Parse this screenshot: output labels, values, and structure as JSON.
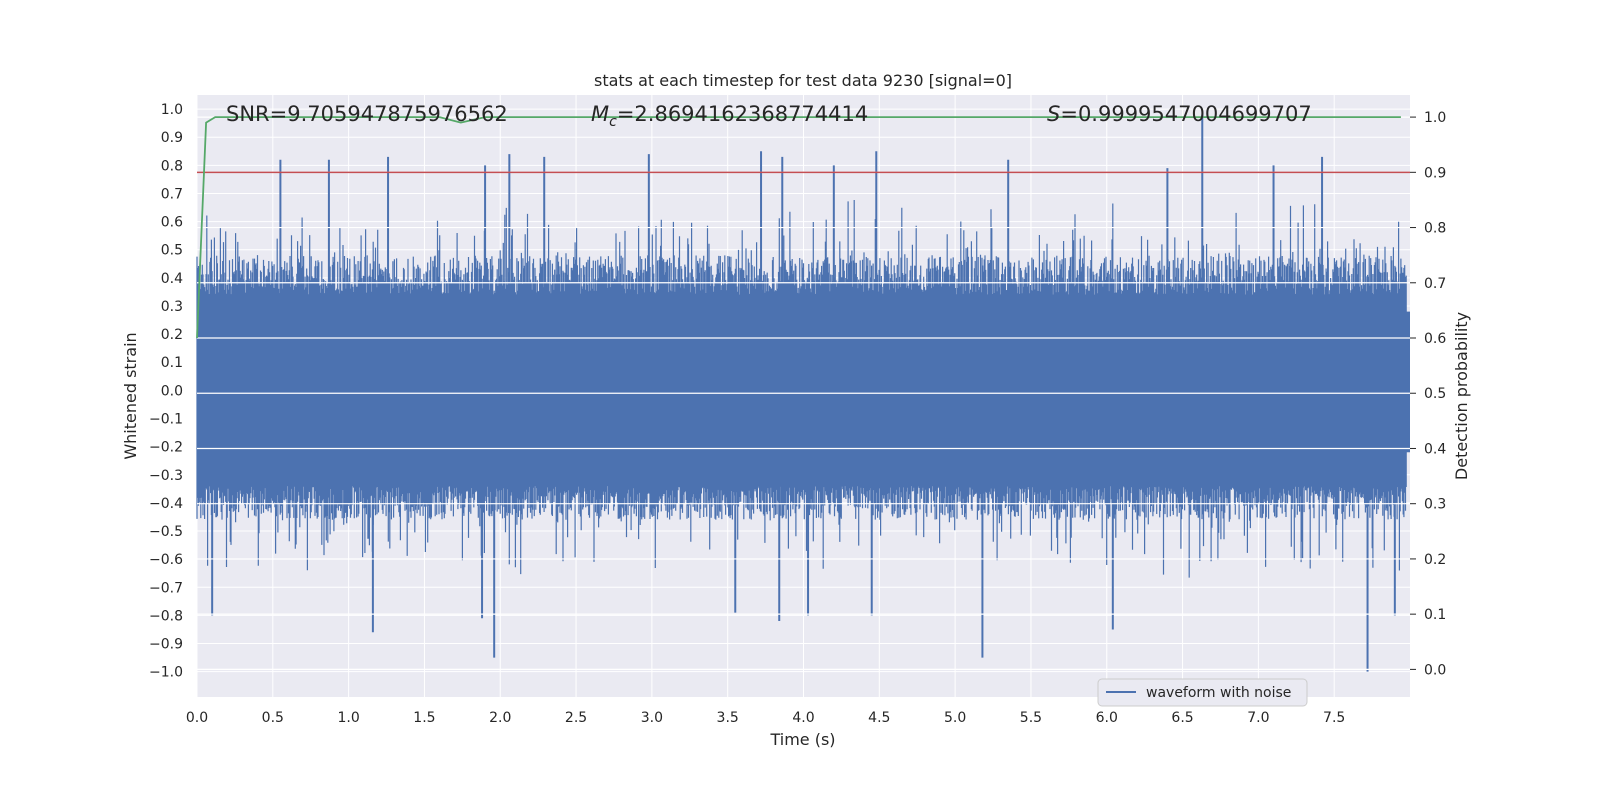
{
  "chart_data": {
    "type": "line",
    "title": "stats at each timestep for test data 9230 [signal=0]",
    "xlabel": "Time (s)",
    "ylabel": "Whitened strain",
    "y2label": "Detection probability",
    "xlim": [
      0.0,
      8.0
    ],
    "ylim": [
      -1.09,
      1.05
    ],
    "y2lim": [
      -0.05,
      1.04
    ],
    "x_ticks": [
      "0.0",
      "0.5",
      "1.0",
      "1.5",
      "2.0",
      "2.5",
      "3.0",
      "3.5",
      "4.0",
      "4.5",
      "5.0",
      "5.5",
      "6.0",
      "6.5",
      "7.0",
      "7.5"
    ],
    "y_ticks": [
      "1.0",
      "0.9",
      "0.8",
      "0.7",
      "0.6",
      "0.5",
      "0.4",
      "0.3",
      "0.2",
      "0.1",
      "0.0",
      "−0.1",
      "−0.2",
      "−0.3",
      "−0.4",
      "−0.5",
      "−0.6",
      "−0.7",
      "−0.8",
      "−0.9",
      "−1.0"
    ],
    "y2_ticks": [
      "1.0",
      "0.9",
      "0.8",
      "0.7",
      "0.6",
      "0.5",
      "0.4",
      "0.3",
      "0.2",
      "0.1",
      "0.0"
    ],
    "annotations": {
      "snr": "SNR=9.705947875976562",
      "mc_symbol": "M",
      "mc_subscript": "c",
      "mc_value": "=2.8694162368774414",
      "s_symbol": "S",
      "s_value": "=0.9999547004699707"
    },
    "series": [
      {
        "name": "waveform with noise",
        "color": "#4c72b0",
        "description": "dense noisy whitened strain; envelope approx +/-0.35 with spikes",
        "spikes_upper": [
          [
            0.55,
            0.82
          ],
          [
            0.87,
            0.82
          ],
          [
            1.26,
            0.83
          ],
          [
            2.06,
            0.84
          ],
          [
            2.29,
            0.83
          ],
          [
            2.98,
            0.84
          ],
          [
            3.72,
            0.85
          ],
          [
            3.86,
            0.83
          ],
          [
            4.48,
            0.85
          ],
          [
            5.35,
            0.82
          ],
          [
            6.63,
            0.98
          ],
          [
            7.42,
            0.83
          ],
          [
            6.4,
            0.79
          ],
          [
            7.1,
            0.8
          ],
          [
            4.2,
            0.8
          ],
          [
            1.9,
            0.8
          ]
        ],
        "spikes_lower": [
          [
            1.16,
            -0.86
          ],
          [
            1.96,
            -0.95
          ],
          [
            3.84,
            -0.82
          ],
          [
            4.03,
            -0.8
          ],
          [
            5.18,
            -0.95
          ],
          [
            6.04,
            -0.85
          ],
          [
            7.72,
            -1.0
          ],
          [
            0.1,
            -0.8
          ],
          [
            1.88,
            -0.81
          ],
          [
            7.9,
            -0.8
          ],
          [
            3.55,
            -0.79
          ],
          [
            4.45,
            -0.8
          ]
        ]
      },
      {
        "name": "detection probability",
        "color": "#55a868",
        "axis": "right",
        "points": [
          [
            0.0,
            0.6
          ],
          [
            0.06,
            0.99
          ],
          [
            0.12,
            1.0
          ],
          [
            1.6,
            1.0
          ],
          [
            1.74,
            0.99
          ],
          [
            1.9,
            1.0
          ],
          [
            7.94,
            1.0
          ]
        ]
      },
      {
        "name": "threshold",
        "color": "#c44e52",
        "axis": "right",
        "value": 0.9
      }
    ],
    "legend": {
      "entries": [
        "waveform with noise"
      ],
      "location": "lower-right"
    }
  }
}
